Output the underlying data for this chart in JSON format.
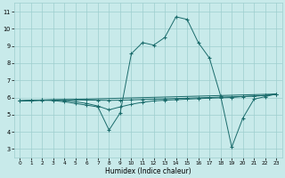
{
  "xlabel": "Humidex (Indice chaleur)",
  "xlim": [
    -0.5,
    23.5
  ],
  "ylim": [
    2.5,
    11.5
  ],
  "xticks": [
    0,
    1,
    2,
    3,
    4,
    5,
    6,
    7,
    8,
    9,
    10,
    11,
    12,
    13,
    14,
    15,
    16,
    17,
    18,
    19,
    20,
    21,
    22,
    23
  ],
  "yticks": [
    3,
    4,
    5,
    6,
    7,
    8,
    9,
    10,
    11
  ],
  "background_color": "#c8eaea",
  "grid_color": "#9ecece",
  "line_color": "#1a6b6b",
  "line1_x": [
    0,
    1,
    2,
    3,
    4,
    5,
    6,
    7,
    8,
    9,
    10,
    11,
    12,
    13,
    14,
    15,
    16,
    17,
    18,
    19,
    20,
    21,
    22,
    23
  ],
  "line1_y": [
    5.8,
    5.83,
    5.85,
    5.87,
    5.87,
    5.86,
    5.85,
    5.84,
    5.83,
    5.84,
    5.86,
    5.88,
    5.9,
    5.92,
    5.94,
    5.96,
    5.98,
    6.0,
    6.02,
    6.04,
    6.06,
    6.08,
    6.12,
    6.2
  ],
  "line2_x": [
    0,
    1,
    2,
    3,
    4,
    5,
    6,
    7,
    8,
    9,
    10,
    11,
    12,
    13,
    14,
    15,
    16,
    17,
    18,
    19,
    20,
    21,
    22,
    23
  ],
  "line2_y": [
    5.8,
    5.82,
    5.83,
    5.84,
    5.82,
    5.75,
    5.65,
    5.5,
    5.28,
    5.45,
    5.6,
    5.72,
    5.8,
    5.84,
    5.87,
    5.9,
    5.93,
    5.96,
    5.98,
    6.0,
    6.05,
    6.08,
    6.12,
    6.2
  ],
  "line3_x": [
    0,
    1,
    2,
    3,
    4,
    5,
    6,
    7,
    8,
    9,
    10,
    11,
    12,
    13,
    14,
    15,
    16,
    17,
    18,
    19,
    20,
    21,
    22,
    23
  ],
  "line3_y": [
    5.8,
    5.83,
    5.85,
    5.82,
    5.75,
    5.65,
    5.55,
    5.45,
    4.1,
    5.1,
    8.55,
    9.2,
    9.05,
    9.5,
    10.7,
    10.55,
    9.2,
    8.3,
    6.1,
    3.1,
    4.8,
    5.9,
    6.05,
    6.2
  ],
  "line4_x": [
    0,
    23
  ],
  "line4_y": [
    5.8,
    6.2
  ]
}
